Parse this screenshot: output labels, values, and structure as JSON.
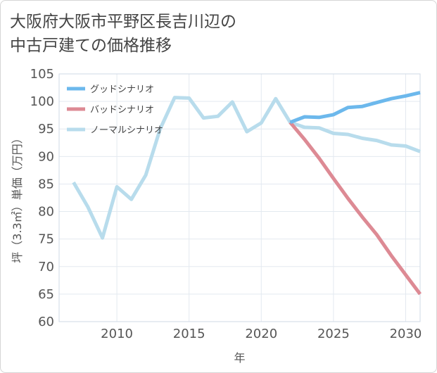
{
  "title_line1": "大阪府大阪市平野区長吉川辺の",
  "title_line2": "中古戸建ての価格推移",
  "chart_data": {
    "type": "line",
    "xlabel": "年",
    "ylabel": "坪（3.3㎡）単価（万円）",
    "xlim": [
      2006,
      2031
    ],
    "ylim": [
      60,
      105
    ],
    "xticks": [
      2010,
      2015,
      2020,
      2025,
      2030
    ],
    "yticks": [
      60,
      65,
      70,
      75,
      80,
      85,
      90,
      95,
      100,
      105
    ],
    "grid": true,
    "legend_position": "top-left",
    "series": [
      {
        "name": "グッドシナリオ",
        "color": "#6cb8ec",
        "x": [
          2022,
          2023,
          2024,
          2025,
          2026,
          2027,
          2028,
          2029,
          2030,
          2031
        ],
        "y": [
          96.2,
          97.2,
          97.1,
          97.6,
          98.9,
          99.1,
          99.8,
          100.5,
          101.0,
          101.6
        ]
      },
      {
        "name": "バッドシナリオ",
        "color": "#dd8a94",
        "x": [
          2022,
          2023,
          2024,
          2025,
          2026,
          2027,
          2028,
          2029,
          2030,
          2031
        ],
        "y": [
          96.2,
          93.1,
          89.7,
          86.0,
          82.4,
          79.0,
          75.8,
          72.0,
          68.5,
          65.0
        ]
      },
      {
        "name": "ノーマルシナリオ",
        "color": "#b8dcec",
        "x": [
          2007,
          2008,
          2009,
          2010,
          2011,
          2012,
          2013,
          2014,
          2015,
          2016,
          2017,
          2018,
          2019,
          2020,
          2021,
          2022,
          2023,
          2024,
          2025,
          2026,
          2027,
          2028,
          2029,
          2030,
          2031
        ],
        "y": [
          85.3,
          80.8,
          75.2,
          84.5,
          82.2,
          86.6,
          95.0,
          100.7,
          100.6,
          97.0,
          97.3,
          99.9,
          94.5,
          96.1,
          100.5,
          96.2,
          95.3,
          95.2,
          94.2,
          94.0,
          93.3,
          92.9,
          92.1,
          91.9,
          90.9
        ]
      }
    ]
  }
}
